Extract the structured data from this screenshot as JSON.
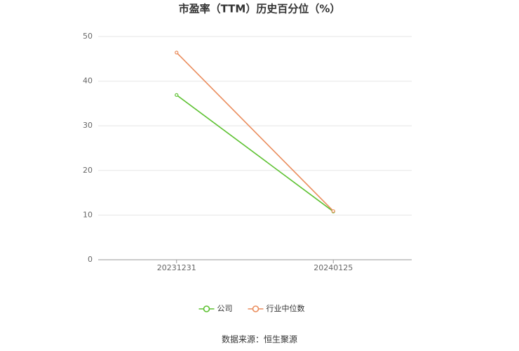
{
  "chart_data": {
    "type": "line",
    "title": "市盈率（TTM）历史百分位（%）",
    "categories": [
      "20231231",
      "20240125"
    ],
    "series": [
      {
        "name": "公司",
        "color": "#5cc130",
        "values": [
          36.9,
          10.8
        ]
      },
      {
        "name": "行业中位数",
        "color": "#ea8c5c",
        "values": [
          46.4,
          10.9
        ]
      }
    ],
    "ylim": [
      0,
      50
    ],
    "yticks": [
      0,
      10,
      20,
      30,
      40,
      50
    ],
    "grid": true,
    "legend": "bottom",
    "source": "数据来源：恒生聚源"
  }
}
